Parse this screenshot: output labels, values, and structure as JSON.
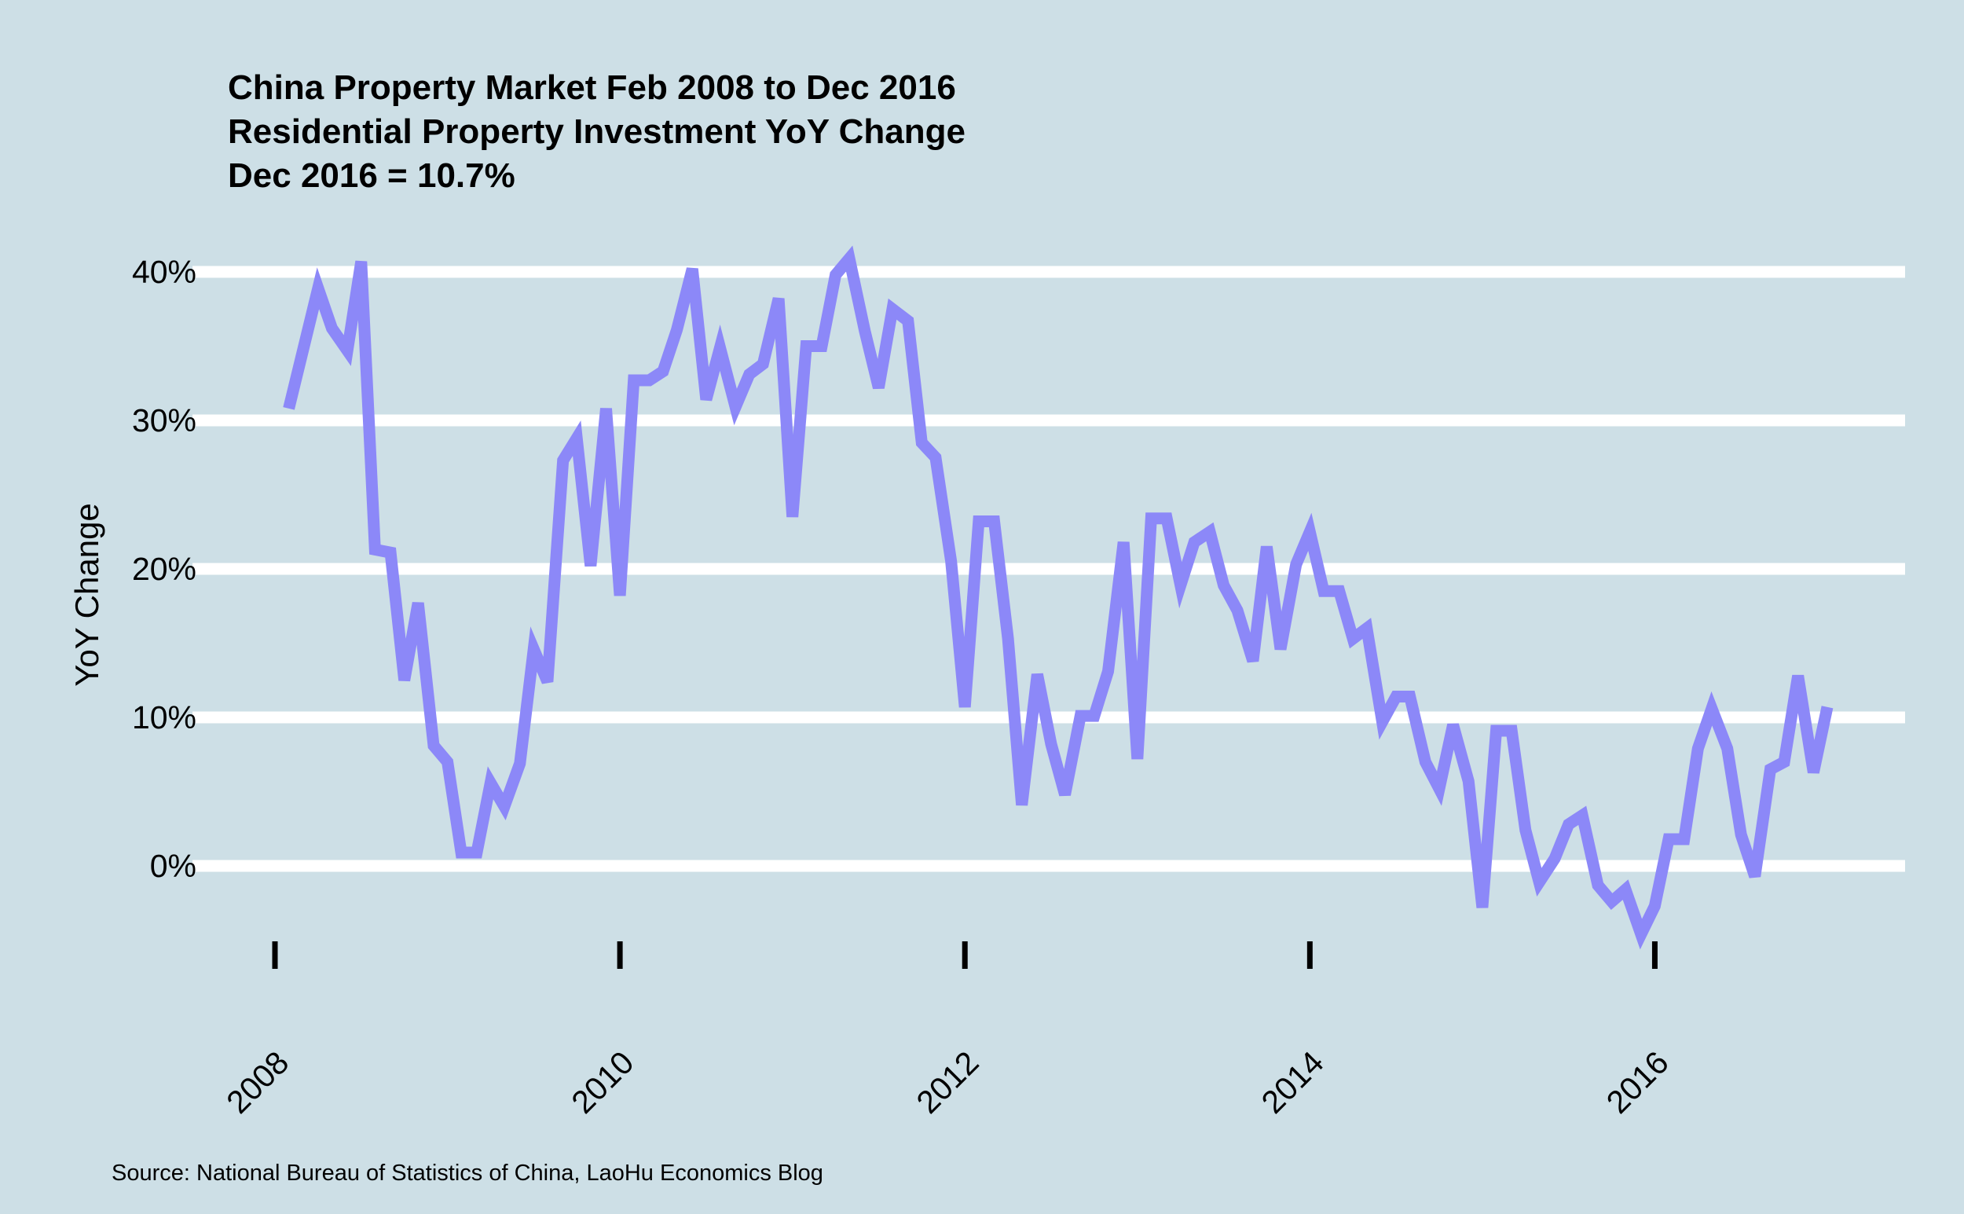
{
  "chart_data": {
    "type": "line",
    "title": [
      "China Property Market Feb 2008 to Dec 2016",
      "Residential Property Investment YoY Change",
      "Dec 2016 = 10.7%"
    ],
    "xlabel": "",
    "ylabel": "YoY Change",
    "source": "Source: National Bureau of Statistics of China, LaoHu Economics Blog",
    "x_ticks": [
      "2008",
      "2010",
      "2012",
      "2014",
      "2016"
    ],
    "y_ticks": [
      "0%",
      "10%",
      "20%",
      "30%",
      "40%"
    ],
    "y_tick_values": [
      0,
      10,
      20,
      30,
      40
    ],
    "xlim": [
      2008.0,
      2017.0
    ],
    "ylim": [
      -5,
      40
    ],
    "grid": "horizontal",
    "colors": {
      "background": "#cddfe6",
      "gridline": "#ffffff",
      "series": "#8c88f8",
      "text": "#000000"
    },
    "series": [
      {
        "x": [
          2008.08,
          2008.25,
          2008.33,
          2008.42,
          2008.5,
          2008.58,
          2008.67,
          2008.75,
          2008.83,
          2008.92,
          2009.0,
          2009.08,
          2009.17,
          2009.25,
          2009.33,
          2009.42,
          2009.5,
          2009.58,
          2009.67,
          2009.75,
          2009.83,
          2009.92,
          2010.0,
          2010.08,
          2010.17,
          2010.25,
          2010.33,
          2010.42,
          2010.5,
          2010.58,
          2010.67,
          2010.75,
          2010.83,
          2010.92,
          2011.0,
          2011.08,
          2011.17,
          2011.25,
          2011.33,
          2011.42,
          2011.5,
          2011.58,
          2011.67,
          2011.75,
          2011.83,
          2011.92,
          2012.0,
          2012.08,
          2012.17,
          2012.25,
          2012.33,
          2012.42,
          2012.5,
          2012.58,
          2012.67,
          2012.75,
          2012.83,
          2012.92,
          2013.0,
          2013.08,
          2013.17,
          2013.25,
          2013.33,
          2013.42,
          2013.5,
          2013.58,
          2013.67,
          2013.75,
          2013.83,
          2013.92,
          2014.0,
          2014.08,
          2014.17,
          2014.25,
          2014.33,
          2014.42,
          2014.5,
          2014.58,
          2014.67,
          2014.75,
          2014.83,
          2014.92,
          2015.0,
          2015.08,
          2015.17,
          2015.25,
          2015.33,
          2015.42,
          2015.5,
          2015.58,
          2015.67,
          2015.75,
          2015.83,
          2015.92,
          2016.0,
          2016.08,
          2016.17,
          2016.25,
          2016.33,
          2016.42,
          2016.5,
          2016.58,
          2016.67,
          2016.75,
          2016.83,
          2016.92,
          2017.0
        ],
        "values": [
          30.8,
          38.9,
          36.2,
          34.7,
          40.7,
          21.3,
          21.1,
          12.5,
          17.7,
          8.1,
          7.0,
          0.9,
          0.9,
          5.6,
          4.0,
          6.9,
          14.6,
          12.4,
          27.3,
          28.8,
          20.2,
          30.8,
          18.2,
          32.7,
          32.7,
          33.3,
          36.1,
          40.2,
          31.4,
          34.9,
          30.9,
          33.1,
          33.8,
          38.2,
          23.5,
          35.0,
          35.0,
          39.8,
          40.9,
          36.0,
          32.2,
          37.5,
          36.7,
          28.5,
          27.5,
          20.5,
          10.7,
          23.2,
          23.2,
          15.3,
          4.1,
          12.9,
          8.2,
          4.8,
          10.1,
          10.1,
          13.1,
          21.8,
          7.2,
          23.4,
          23.4,
          18.9,
          21.8,
          22.5,
          18.9,
          17.2,
          13.8,
          21.5,
          14.6,
          20.3,
          22.5,
          18.5,
          18.5,
          15.3,
          16.0,
          9.7,
          11.4,
          11.4,
          7.0,
          5.2,
          9.5,
          5.7,
          -2.8,
          9.1,
          9.1,
          2.4,
          -1.1,
          0.5,
          2.8,
          3.4,
          -1.3,
          -2.4,
          -1.6,
          -4.6,
          -2.7,
          1.8,
          1.8,
          7.9,
          10.6,
          7.9,
          2.1,
          -0.7,
          6.5,
          7.0,
          12.8,
          6.3,
          10.7
        ]
      }
    ]
  }
}
